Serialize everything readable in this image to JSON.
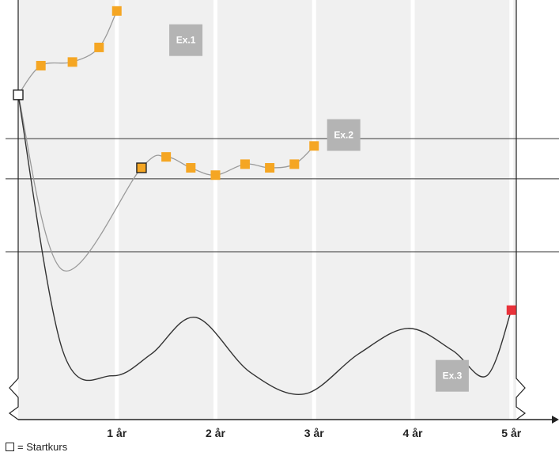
{
  "chart_data": {
    "type": "line",
    "xlabel": "",
    "ylabel": "",
    "x_ticks": [
      {
        "value": 1,
        "label": "1 år"
      },
      {
        "value": 2,
        "label": "2 år"
      },
      {
        "value": 3,
        "label": "3 år"
      },
      {
        "value": 4,
        "label": "4 år"
      },
      {
        "value": 5,
        "label": "5 år"
      }
    ],
    "xlim": [
      0,
      5.05
    ],
    "ylim": [
      -0.5,
      11
    ],
    "y_units": "relative course level (no printed scale)",
    "reference_levels": [
      7.2,
      6.1,
      4.1
    ],
    "start_point": {
      "x": 0,
      "y": 8.4
    },
    "series": [
      {
        "name": "Ex.1",
        "points": [
          [
            0,
            8.4
          ],
          [
            0.23,
            9.2
          ],
          [
            0.55,
            9.3
          ],
          [
            0.82,
            9.7
          ],
          [
            1.0,
            10.7
          ]
        ],
        "markers": [
          [
            0.23,
            9.2
          ],
          [
            0.55,
            9.3
          ],
          [
            0.82,
            9.7
          ],
          [
            1.0,
            10.7
          ]
        ],
        "marker_style": "orange"
      },
      {
        "name": "Ex.2",
        "points": [
          [
            0,
            8.4
          ],
          [
            0.45,
            3.6
          ],
          [
            1.25,
            6.4
          ],
          [
            1.5,
            6.7
          ],
          [
            1.75,
            6.4
          ],
          [
            2.0,
            6.2
          ],
          [
            2.3,
            6.5
          ],
          [
            2.55,
            6.4
          ],
          [
            2.8,
            6.5
          ],
          [
            3.0,
            7.0
          ]
        ],
        "markers": [
          [
            1.5,
            6.7
          ],
          [
            1.75,
            6.4
          ],
          [
            2.0,
            6.2
          ],
          [
            2.3,
            6.5
          ],
          [
            2.55,
            6.4
          ],
          [
            2.8,
            6.5
          ],
          [
            3.0,
            7.0
          ]
        ],
        "highlight_marker": [
          1.25,
          6.4
        ],
        "marker_style": "orange"
      },
      {
        "name": "Ex.3",
        "points": [
          [
            0,
            8.4
          ],
          [
            0.45,
            1.4
          ],
          [
            0.95,
            0.7
          ],
          [
            1.35,
            1.3
          ],
          [
            1.8,
            2.3
          ],
          [
            2.35,
            0.8
          ],
          [
            2.9,
            0.2
          ],
          [
            3.45,
            1.3
          ],
          [
            3.95,
            2.0
          ],
          [
            4.4,
            1.4
          ],
          [
            4.75,
            0.7
          ],
          [
            5.0,
            2.5
          ]
        ],
        "end_marker": [
          5.0,
          2.5
        ],
        "marker_style": "red"
      }
    ],
    "annotations": [
      {
        "text": "Ex.1",
        "x": 1.7,
        "y": 9.9
      },
      {
        "text": "Ex.2",
        "x": 3.3,
        "y": 7.3
      },
      {
        "text": "Ex.3",
        "x": 4.4,
        "y": 0.7
      }
    ],
    "colors": {
      "band": "#f0f0f0",
      "band_gap": "#ffffff",
      "grid_line": "#333333",
      "axis": "#222222",
      "ex1_line": "#9a9a9a",
      "ex2_line": "#9a9a9a",
      "ex3_line": "#333333",
      "orange": "#f5a623",
      "red": "#e8323a",
      "label_box": "#b4b4b4"
    },
    "legend": {
      "text": "= Startkurs",
      "placement": "bottom-left"
    }
  }
}
